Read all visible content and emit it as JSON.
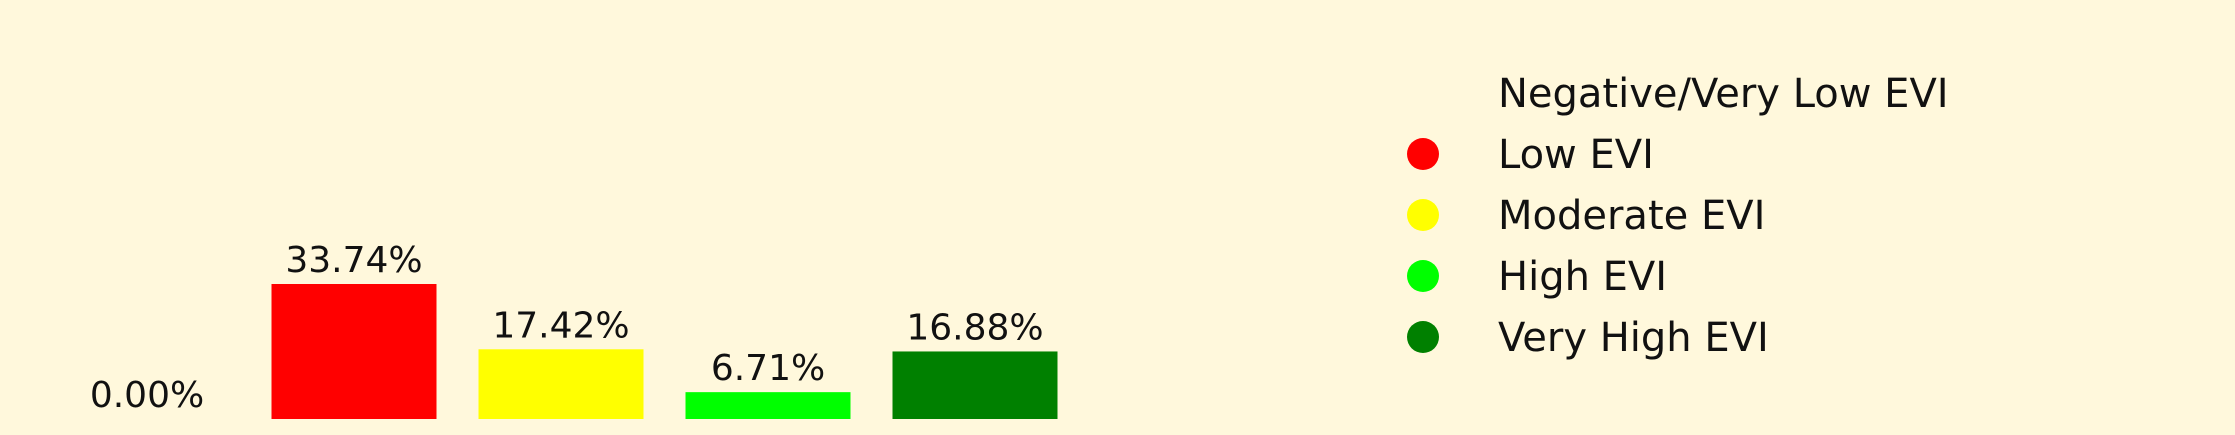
{
  "chart_data": {
    "type": "bar",
    "categories": [
      "Negative/Very Low EVI",
      "Low EVI",
      "Moderate EVI",
      "High EVI",
      "Very High EVI"
    ],
    "values": [
      0.0,
      33.74,
      17.42,
      6.71,
      16.88
    ],
    "value_labels": [
      "0.00%",
      "33.74%",
      "17.42%",
      "6.71%",
      "16.88%"
    ],
    "colors": [
      "#fff8dc",
      "#ff0000",
      "#ffff00",
      "#00ff00",
      "#008000"
    ],
    "legend": {
      "placement": "right",
      "entries": [
        "Negative/Very Low EVI",
        "Low EVI",
        "Moderate EVI",
        "High EVI",
        "Very High EVI"
      ]
    },
    "ylim": [
      0,
      35
    ],
    "grid": false,
    "axes_visible": false,
    "background": "#fff8dc"
  }
}
